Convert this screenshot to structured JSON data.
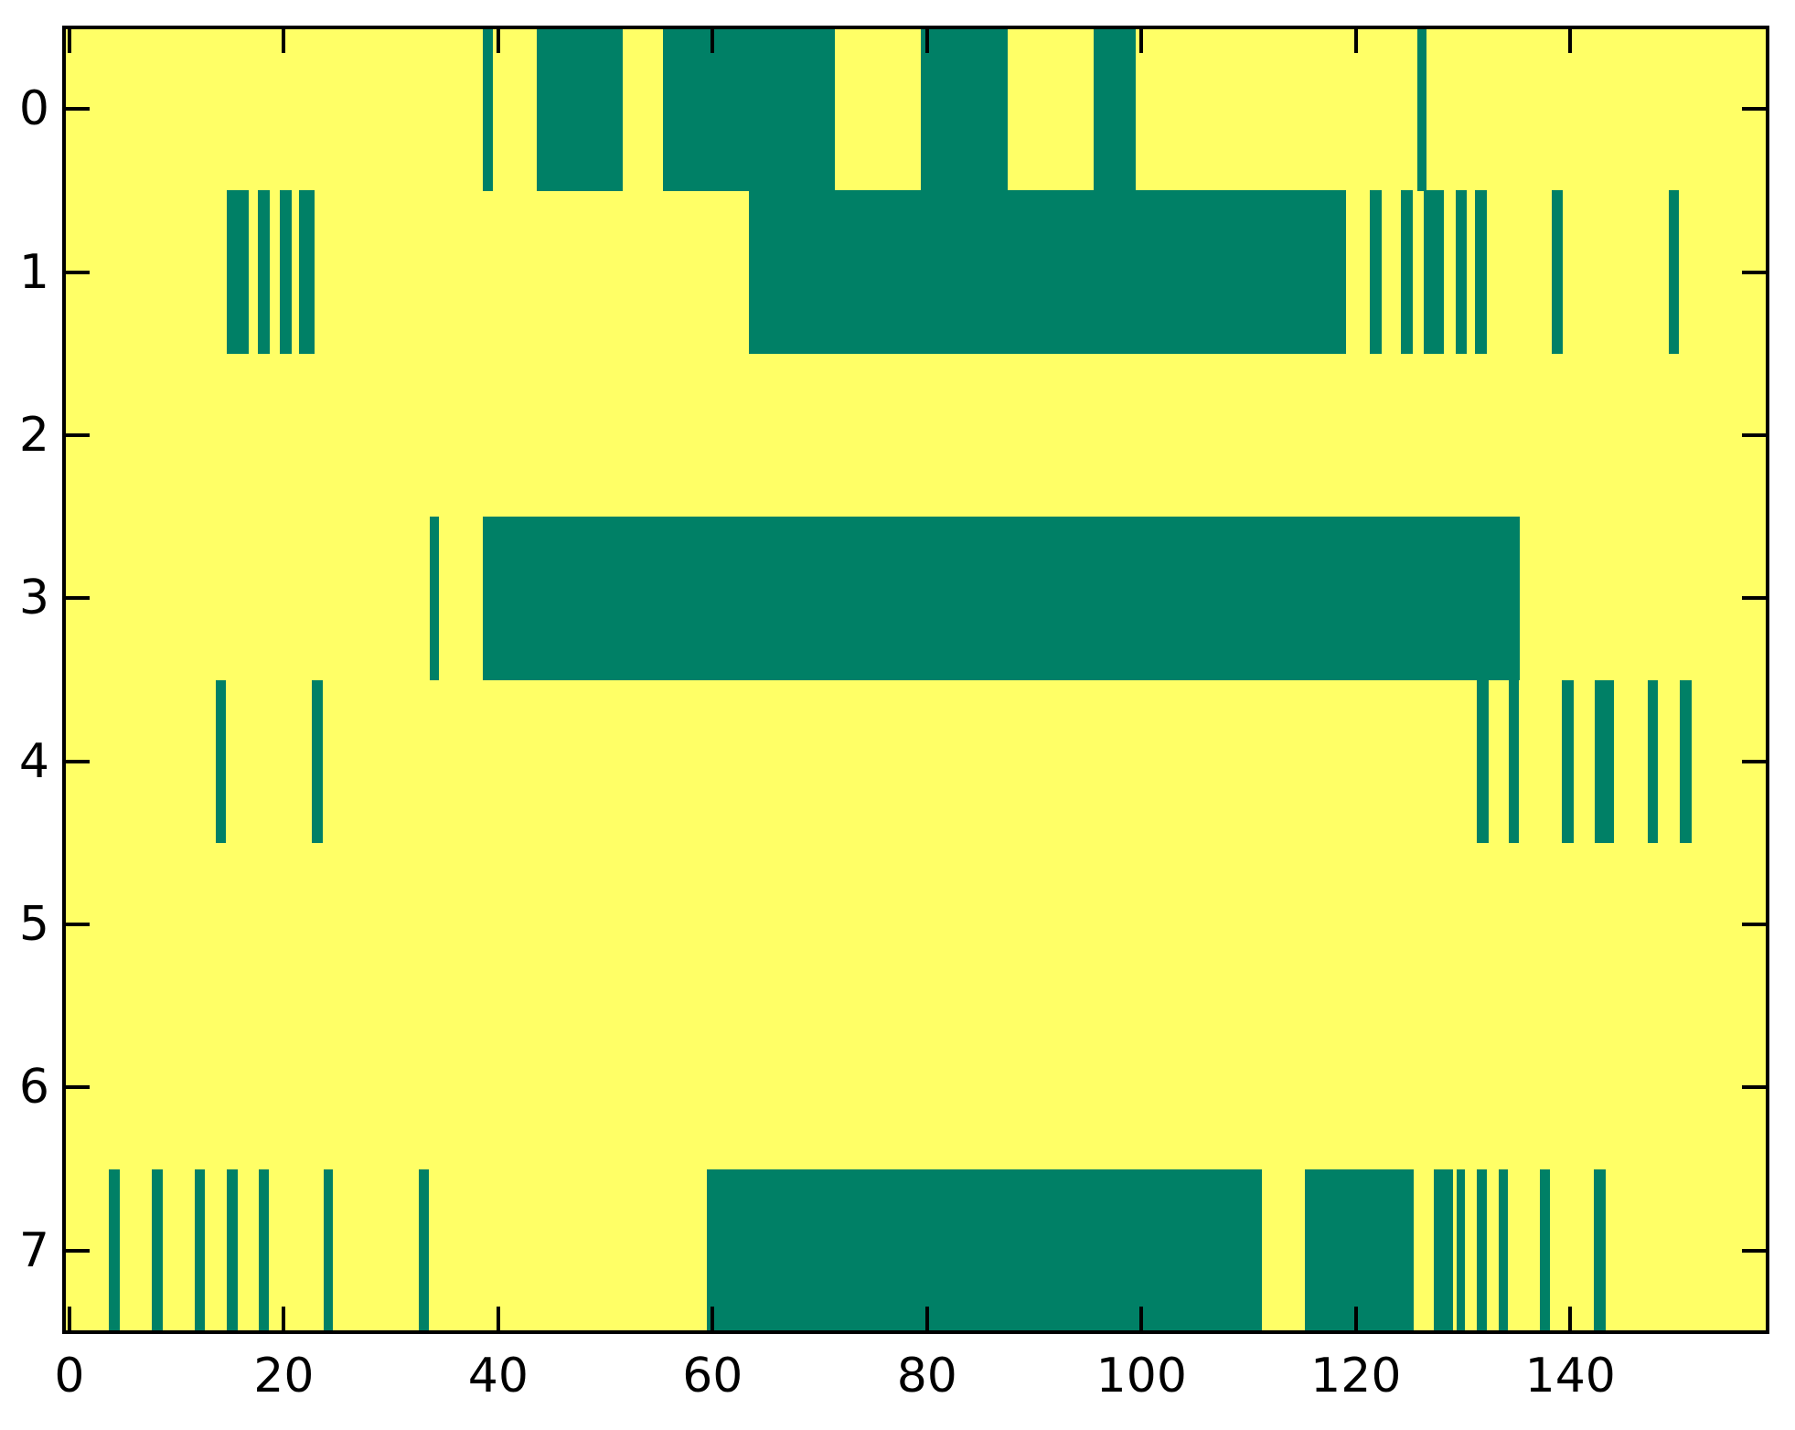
{
  "figure": {
    "background": "#ffffff",
    "title": ""
  },
  "chart_data": {
    "type": "heatmap",
    "title": "",
    "xlabel": "",
    "ylabel": "",
    "grid": false,
    "legend": "none",
    "xlim": [
      -0.5,
      158.4
    ],
    "n_rows": 8,
    "x_ticks": [
      0,
      20,
      40,
      60,
      80,
      100,
      120,
      140
    ],
    "y_ticks": [
      0,
      1,
      2,
      3,
      4,
      5,
      6,
      7
    ],
    "tick_style": {
      "direction": "in",
      "length": 28,
      "thickness": 4,
      "sides": "all",
      "label_color": "#000000"
    },
    "colors": {
      "on": "#008066",
      "off": "#FFFF66",
      "frame": "#000000"
    },
    "rows": [
      {
        "y": 0,
        "segments": [
          [
            38.6,
            39.5
          ],
          [
            43.6,
            51.6
          ],
          [
            55.4,
            71.4
          ],
          [
            79.4,
            87.5
          ],
          [
            95.5,
            99.5
          ],
          [
            125.7,
            126.6
          ]
        ]
      },
      {
        "y": 1,
        "segments": [
          [
            14.7,
            16.7
          ],
          [
            17.6,
            18.7
          ],
          [
            19.6,
            20.7
          ],
          [
            21.4,
            22.9
          ],
          [
            63.4,
            119.1
          ],
          [
            121.3,
            122.4
          ],
          [
            124.2,
            125.3
          ],
          [
            126.3,
            128.2
          ],
          [
            129.3,
            130.3
          ],
          [
            131.1,
            132.2
          ],
          [
            138.3,
            139.3
          ],
          [
            149.2,
            150.1
          ]
        ]
      },
      {
        "y": 2,
        "segments": []
      },
      {
        "y": 3,
        "segments": [
          [
            33.6,
            34.5
          ],
          [
            38.6,
            135.3
          ]
        ]
      },
      {
        "y": 4,
        "segments": [
          [
            13.7,
            14.6
          ],
          [
            22.6,
            23.6
          ],
          [
            131.3,
            132.4
          ],
          [
            134.3,
            135.2
          ],
          [
            139.2,
            140.3
          ],
          [
            142.3,
            144.1
          ],
          [
            147.2,
            148.2
          ],
          [
            150.2,
            151.3
          ]
        ]
      },
      {
        "y": 5,
        "segments": []
      },
      {
        "y": 6,
        "segments": []
      },
      {
        "y": 7,
        "segments": [
          [
            3.7,
            4.7
          ],
          [
            7.7,
            8.7
          ],
          [
            11.7,
            12.6
          ],
          [
            14.7,
            15.7
          ],
          [
            17.7,
            18.6
          ],
          [
            23.7,
            24.6
          ],
          [
            32.6,
            33.5
          ],
          [
            59.5,
            111.2
          ],
          [
            115.2,
            125.4
          ],
          [
            127.3,
            129.1
          ],
          [
            129.4,
            130.2
          ],
          [
            131.3,
            132.2
          ],
          [
            133.3,
            134.2
          ],
          [
            137.2,
            138.1
          ],
          [
            142.2,
            143.3
          ]
        ]
      }
    ]
  }
}
